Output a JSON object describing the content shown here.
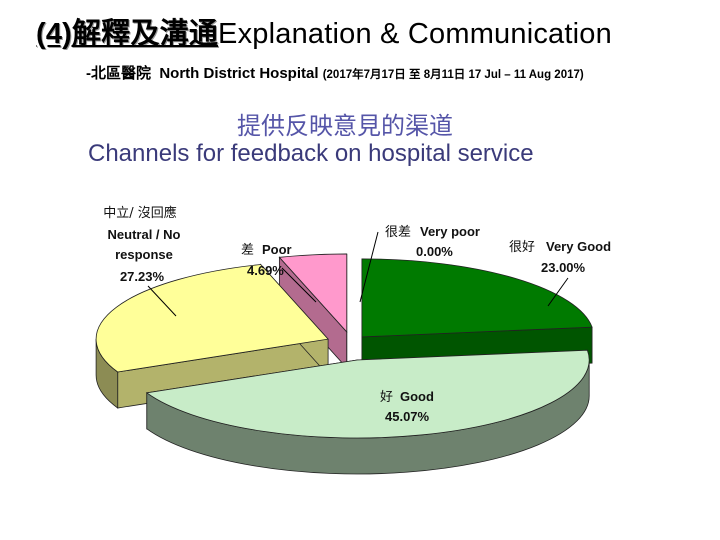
{
  "header": {
    "title_zh": "(4)解釋及溝通",
    "title_en": "Explanation & Communication",
    "subtitle_prefix": "-北區醫院",
    "subtitle_hospital": "North District Hospital",
    "subtitle_dates": "(2017年7月17日 至 8月11日 17 Jul – 11 Aug 2017)"
  },
  "chart_data": {
    "type": "pie",
    "title": "提供反映意見的渠道",
    "subtitle": "Channels for feedback on hospital service",
    "slices": [
      {
        "label_zh": "很好",
        "label_en": "Very Good",
        "value": 23.0,
        "value_text": "23.00%",
        "color": "#007a00"
      },
      {
        "label_zh": "好",
        "label_en": "Good",
        "value": 45.07,
        "value_text": "45.07%",
        "color": "#c8ecc8"
      },
      {
        "label_zh": "中立/ 沒回應",
        "label_en": "Neutral / No response",
        "value": 27.23,
        "value_text": "27.23%",
        "color": "#ffff99"
      },
      {
        "label_zh": "差",
        "label_en": "Poor",
        "value": 4.69,
        "value_text": "4.69%",
        "color": "#ff99cc"
      },
      {
        "label_zh": "很差",
        "label_en": "Very poor",
        "value": 0.0,
        "value_text": "0.00%",
        "color": "#404040"
      }
    ]
  }
}
